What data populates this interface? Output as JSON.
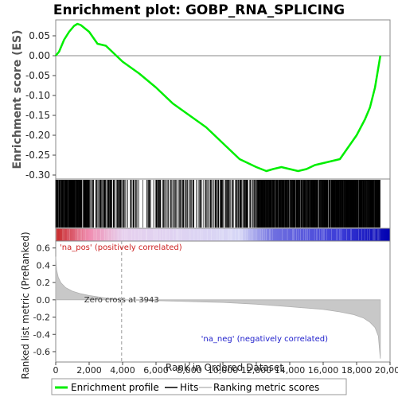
{
  "title": "Enrichment plot: GOBP_RNA_SPLICING",
  "top_ylabel": "Enrichment score (ES)",
  "bottom_ylabel": "Ranked list metric (PreRanked)",
  "xlabel": "Rank in Ordered Dataset",
  "zero_cross_label": "Zero cross at 3943",
  "pos_label": "'na_pos' (positively correlated)",
  "neg_label": "'na_neg' (negatively correlated)",
  "legend": {
    "enrichment": "Enrichment profile",
    "hits": "Hits",
    "ranking": "Ranking metric scores"
  },
  "colors": {
    "profile": "#00ee00",
    "pos_label": "#cc2020",
    "neg_label": "#2020cc",
    "zero_cross_line": "#999999"
  },
  "chart_data": [
    {
      "type": "line",
      "name": "enrichment-profile",
      "x_range": [
        0,
        20000
      ],
      "x_ticks": [
        0,
        2000,
        4000,
        6000,
        8000,
        10000,
        12000,
        14000,
        16000,
        18000,
        20000
      ],
      "x_tick_labels": [
        "0",
        "2,000",
        "4,000",
        "6,000",
        "8,000",
        "10,000",
        "12,000",
        "14,000",
        "16,000",
        "18,000",
        "20,000"
      ],
      "y_range": [
        -0.31,
        0.09
      ],
      "y_ticks": [
        0.05,
        0.0,
        -0.05,
        -0.1,
        -0.15,
        -0.2,
        -0.25,
        -0.3
      ],
      "y_tick_labels": [
        "0.05",
        "0.00",
        "-0.05",
        "-0.10",
        "-0.15",
        "-0.20",
        "-0.25",
        "-0.30"
      ],
      "x": [
        0,
        200,
        500,
        800,
        1100,
        1300,
        1500,
        2000,
        2500,
        3000,
        3500,
        4000,
        4500,
        5000,
        6000,
        7000,
        8000,
        9000,
        10000,
        11000,
        12000,
        12600,
        13000,
        13500,
        14000,
        14500,
        15000,
        15500,
        16000,
        16500,
        17000,
        17500,
        18000,
        18500,
        18800,
        19100,
        19300,
        19420
      ],
      "y": [
        0.0,
        0.01,
        0.04,
        0.06,
        0.075,
        0.08,
        0.077,
        0.06,
        0.03,
        0.025,
        0.005,
        -0.015,
        -0.03,
        -0.045,
        -0.08,
        -0.12,
        -0.15,
        -0.18,
        -0.22,
        -0.26,
        -0.28,
        -0.29,
        -0.285,
        -0.28,
        -0.285,
        -0.29,
        -0.285,
        -0.275,
        -0.27,
        -0.265,
        -0.26,
        -0.23,
        -0.2,
        -0.16,
        -0.13,
        -0.08,
        -0.03,
        0.0
      ]
    },
    {
      "type": "area",
      "name": "ranked-list-metric",
      "x_range": [
        0,
        20000
      ],
      "y_range": [
        -0.72,
        0.68
      ],
      "y_ticks": [
        0.6,
        0.4,
        0.2,
        0.0,
        -0.2,
        -0.4,
        -0.6
      ],
      "y_tick_labels": [
        "0.6",
        "0.4",
        "0.2",
        "0.0",
        "-0.2",
        "-0.4",
        "-0.6"
      ],
      "zero_cross": 3943,
      "x": [
        0,
        50,
        150,
        300,
        600,
        1000,
        1500,
        2000,
        3000,
        3943,
        6000,
        8000,
        10000,
        12000,
        14000,
        16000,
        17000,
        17800,
        18400,
        18800,
        19100,
        19300,
        19420
      ],
      "y": [
        0.5,
        0.35,
        0.26,
        0.2,
        0.14,
        0.1,
        0.07,
        0.05,
        0.02,
        0.0,
        -0.01,
        -0.02,
        -0.03,
        -0.05,
        -0.08,
        -0.11,
        -0.14,
        -0.17,
        -0.21,
        -0.26,
        -0.32,
        -0.42,
        -0.68
      ]
    }
  ]
}
